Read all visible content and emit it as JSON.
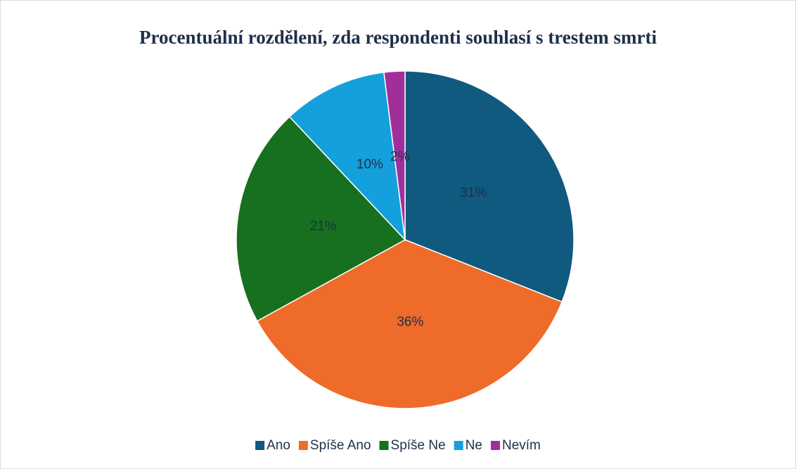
{
  "chart_data": {
    "type": "pie",
    "title": "Procentuální rozdělení, zda respondenti souhlasí s trestem smrti",
    "categories": [
      "Ano",
      "Spíše Ano",
      "Spíše Ne",
      "Ne",
      "Nevím"
    ],
    "values": [
      31,
      36,
      21,
      10,
      2
    ],
    "value_labels": [
      "31%",
      "36%",
      "21%",
      "10%",
      "2%"
    ],
    "colors": [
      "#10597f",
      "#ee6b2a",
      "#17701f",
      "#13a0dc",
      "#a12f9b"
    ],
    "legend": "bottom"
  }
}
